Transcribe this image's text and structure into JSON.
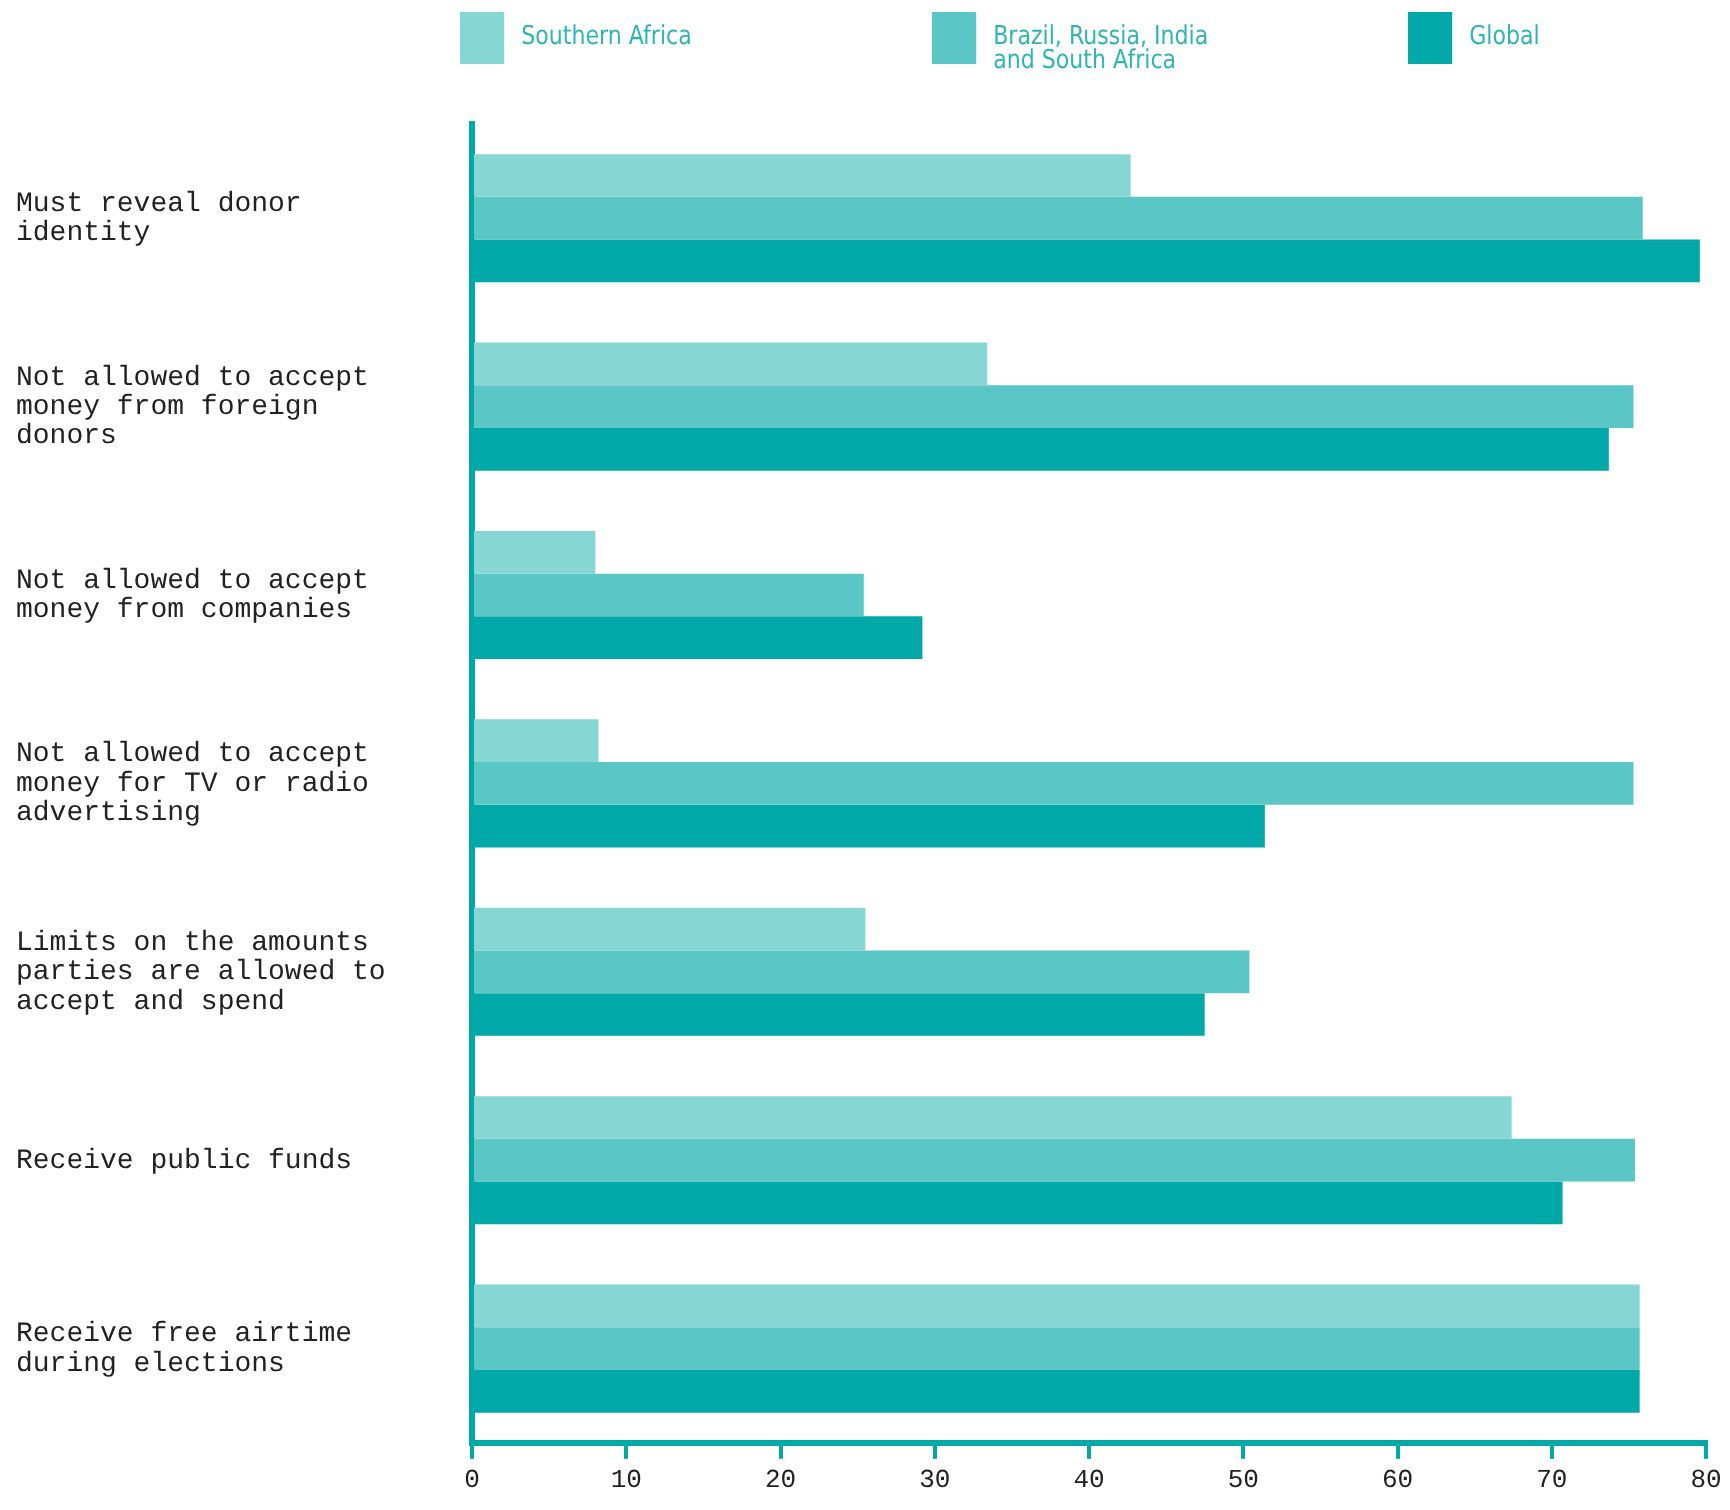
{
  "chart_data": {
    "type": "bar",
    "orientation": "horizontal",
    "categories": [
      "Must reveal donor identity",
      "Not allowed to accept money from foreign donors",
      "Not allowed to accept money from companies",
      "Not allowed to accept money for TV or radio advertising",
      "Limits on the amounts parties are allowed to accept and spend",
      "Receive public funds",
      "Receive free airtime during elections"
    ],
    "series": [
      {
        "name": "Southern Africa",
        "color": "#86d6d4",
        "values": [
          42.7,
          33.4,
          8,
          8.2,
          25.5,
          67.4,
          75.7
        ]
      },
      {
        "name": "Brazil, Russia, India and South Africa",
        "color": "#5bc6c6",
        "values": [
          75.9,
          75.3,
          25.4,
          75.3,
          50.4,
          75.4,
          75.7
        ]
      },
      {
        "name": "Global",
        "color": "#00a9a8",
        "values": [
          79.6,
          73.7,
          29.2,
          51.4,
          47.5,
          70.7,
          75.7
        ]
      }
    ],
    "xlim": [
      0,
      80
    ],
    "xticks": [
      0,
      10,
      20,
      30,
      40,
      50,
      60,
      70,
      80
    ],
    "grid": false,
    "legend": "top"
  }
}
